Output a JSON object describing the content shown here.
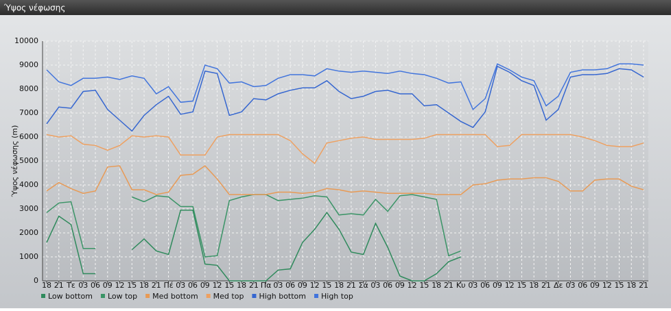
{
  "window_title": "Ύψος νέφωσης",
  "chart_data": {
    "type": "line",
    "y_label": "Ύψος νέφωσης (m)",
    "categories": [
      "18",
      "21",
      "Τε",
      "03",
      "06",
      "09",
      "12",
      "15",
      "18",
      "21",
      "Πέ",
      "03",
      "06",
      "09",
      "12",
      "15",
      "18",
      "21",
      "Πα",
      "03",
      "06",
      "09",
      "12",
      "15",
      "18",
      "21",
      "Σά",
      "03",
      "06",
      "09",
      "12",
      "15",
      "18",
      "21",
      "Κυ",
      "03",
      "06",
      "09",
      "12",
      "15",
      "18",
      "21",
      "Δε",
      "03",
      "06",
      "09",
      "12",
      "15",
      "18",
      "21"
    ],
    "ylim": [
      0,
      10000
    ],
    "yticks": [
      0,
      1000,
      2000,
      3000,
      4000,
      5000,
      6000,
      7000,
      8000,
      9000,
      10000
    ],
    "grid": true,
    "legend": "bottom",
    "series": [
      {
        "name": "Low bottom",
        "color": "#2f8a5c",
        "values": [
          1600,
          2700,
          2350,
          300,
          300,
          null,
          null,
          1300,
          1750,
          1250,
          1100,
          2950,
          2950,
          700,
          650,
          0,
          0,
          0,
          0,
          450,
          500,
          1600,
          2150,
          2850,
          2150,
          1200,
          1100,
          2400,
          1400,
          200,
          0,
          0,
          300,
          800,
          1000,
          null,
          null,
          null,
          null,
          null,
          null,
          null,
          null,
          null,
          null,
          null,
          null,
          null,
          null,
          null
        ]
      },
      {
        "name": "Low top",
        "color": "#3a9466",
        "values": [
          2850,
          3250,
          3300,
          1350,
          1350,
          null,
          null,
          3500,
          3300,
          3550,
          3500,
          3100,
          3100,
          1000,
          1050,
          3350,
          3500,
          3600,
          3600,
          3350,
          3400,
          3450,
          3550,
          3500,
          2750,
          2800,
          2750,
          3400,
          2900,
          3550,
          3600,
          3500,
          3400,
          1050,
          1250,
          null,
          null,
          null,
          null,
          null,
          null,
          null,
          null,
          null,
          null,
          null,
          null,
          null,
          null,
          null
        ]
      },
      {
        "name": "Med bottom",
        "color": "#e89a55",
        "values": [
          3750,
          4100,
          3850,
          3650,
          3750,
          4750,
          4800,
          3800,
          3800,
          3600,
          3700,
          4400,
          4450,
          4800,
          4250,
          3600,
          3600,
          3600,
          3600,
          3700,
          3700,
          3650,
          3700,
          3850,
          3800,
          3700,
          3750,
          3700,
          3650,
          3650,
          3650,
          3650,
          3600,
          3600,
          3600,
          4000,
          4050,
          4200,
          4250,
          4250,
          4300,
          4300,
          4150,
          3750,
          3750,
          4200,
          4250,
          4250,
          3950,
          3800
        ]
      },
      {
        "name": "Med top",
        "color": "#eea060",
        "values": [
          6100,
          6000,
          6050,
          5700,
          5650,
          5450,
          5650,
          6050,
          6000,
          6050,
          6000,
          5250,
          5250,
          5250,
          6000,
          6100,
          6100,
          6100,
          6100,
          6100,
          5850,
          5300,
          4900,
          5750,
          5850,
          5950,
          6000,
          5900,
          5900,
          5900,
          5900,
          5950,
          6100,
          6100,
          6100,
          6100,
          6100,
          5600,
          5650,
          6100,
          6100,
          6100,
          6100,
          6100,
          6000,
          5850,
          5650,
          5600,
          5600,
          5750
        ]
      },
      {
        "name": "High bottom",
        "color": "#3566d0",
        "values": [
          6550,
          7250,
          7200,
          7900,
          7950,
          7150,
          6700,
          6250,
          6900,
          7350,
          7700,
          6950,
          7050,
          8750,
          8650,
          6900,
          7050,
          7600,
          7550,
          7800,
          7950,
          8050,
          8050,
          8350,
          7900,
          7600,
          7700,
          7900,
          7950,
          7800,
          7800,
          7300,
          7350,
          7000,
          6650,
          6400,
          7050,
          8950,
          8700,
          8350,
          8150,
          6700,
          7150,
          8500,
          8600,
          8600,
          8650,
          8850,
          8800,
          8500
        ]
      },
      {
        "name": "High top",
        "color": "#4174dc",
        "values": [
          8800,
          8300,
          8150,
          8450,
          8450,
          8500,
          8400,
          8550,
          8450,
          7800,
          8100,
          7450,
          7500,
          9000,
          8850,
          8250,
          8300,
          8100,
          8150,
          8450,
          8600,
          8600,
          8550,
          8850,
          8750,
          8700,
          8750,
          8700,
          8650,
          8750,
          8650,
          8600,
          8450,
          8250,
          8300,
          7150,
          7600,
          9050,
          8800,
          8500,
          8350,
          7300,
          7700,
          8700,
          8800,
          8800,
          8850,
          9050,
          9050,
          9000
        ]
      }
    ]
  }
}
